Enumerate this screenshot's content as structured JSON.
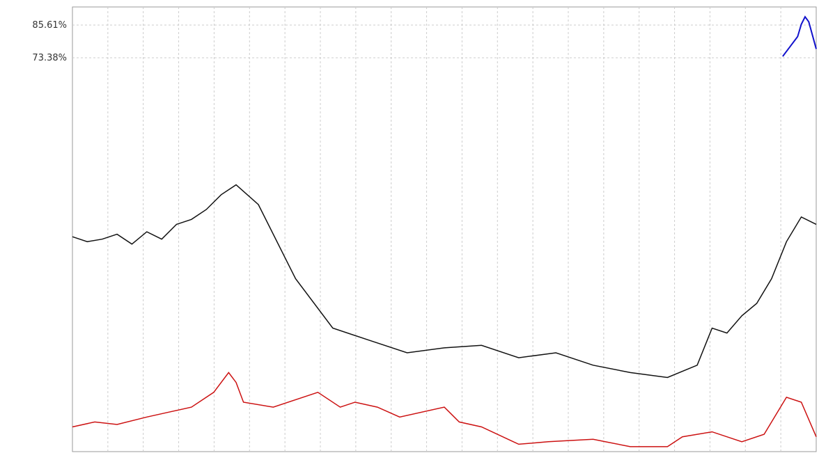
{
  "chart_data": {
    "type": "line",
    "title": "",
    "xlabel": "",
    "ylabel": "",
    "y_tick_labels": [
      "85.61%",
      "73.38%"
    ],
    "y_tick_values": [
      85.61,
      73.38
    ],
    "grid": true,
    "series": [
      {
        "color": "#1111cc",
        "x": [
          0.955,
          0.965,
          0.975,
          0.98,
          0.985,
          0.99,
          1.0
        ],
        "y": [
          70,
          74,
          78,
          83,
          86,
          84,
          73
        ]
      },
      {
        "color": "#111111",
        "x": [
          0.0,
          0.02,
          0.04,
          0.06,
          0.08,
          0.1,
          0.12,
          0.14,
          0.16,
          0.18,
          0.2,
          0.22,
          0.25,
          0.3,
          0.35,
          0.4,
          0.45,
          0.5,
          0.55,
          0.6,
          0.65,
          0.7,
          0.75,
          0.8,
          0.84,
          0.86,
          0.88,
          0.9,
          0.92,
          0.94,
          0.96,
          0.98,
          1.0
        ],
        "y": [
          -3,
          -5,
          -4,
          -2,
          -6,
          -1,
          -4,
          2,
          4,
          8,
          14,
          18,
          10,
          -20,
          -40,
          -45,
          -50,
          -48,
          -47,
          -52,
          -50,
          -55,
          -58,
          -60,
          -55,
          -40,
          -42,
          -35,
          -30,
          -20,
          -5,
          5,
          2
        ]
      },
      {
        "color": "#cc1111",
        "x": [
          0.0,
          0.03,
          0.06,
          0.1,
          0.13,
          0.16,
          0.19,
          0.21,
          0.22,
          0.23,
          0.27,
          0.33,
          0.36,
          0.38,
          0.41,
          0.44,
          0.5,
          0.52,
          0.55,
          0.6,
          0.64,
          0.7,
          0.75,
          0.8,
          0.82,
          0.86,
          0.9,
          0.93,
          0.96,
          0.98,
          1.0
        ],
        "y": [
          -80,
          -78,
          -79,
          -76,
          -74,
          -72,
          -66,
          -58,
          -62,
          -70,
          -72,
          -66,
          -72,
          -70,
          -72,
          -76,
          -72,
          -78,
          -80,
          -87,
          -86,
          -85,
          -88,
          -88,
          -84,
          -82,
          -86,
          -83,
          -68,
          -70,
          -84
        ]
      }
    ]
  }
}
